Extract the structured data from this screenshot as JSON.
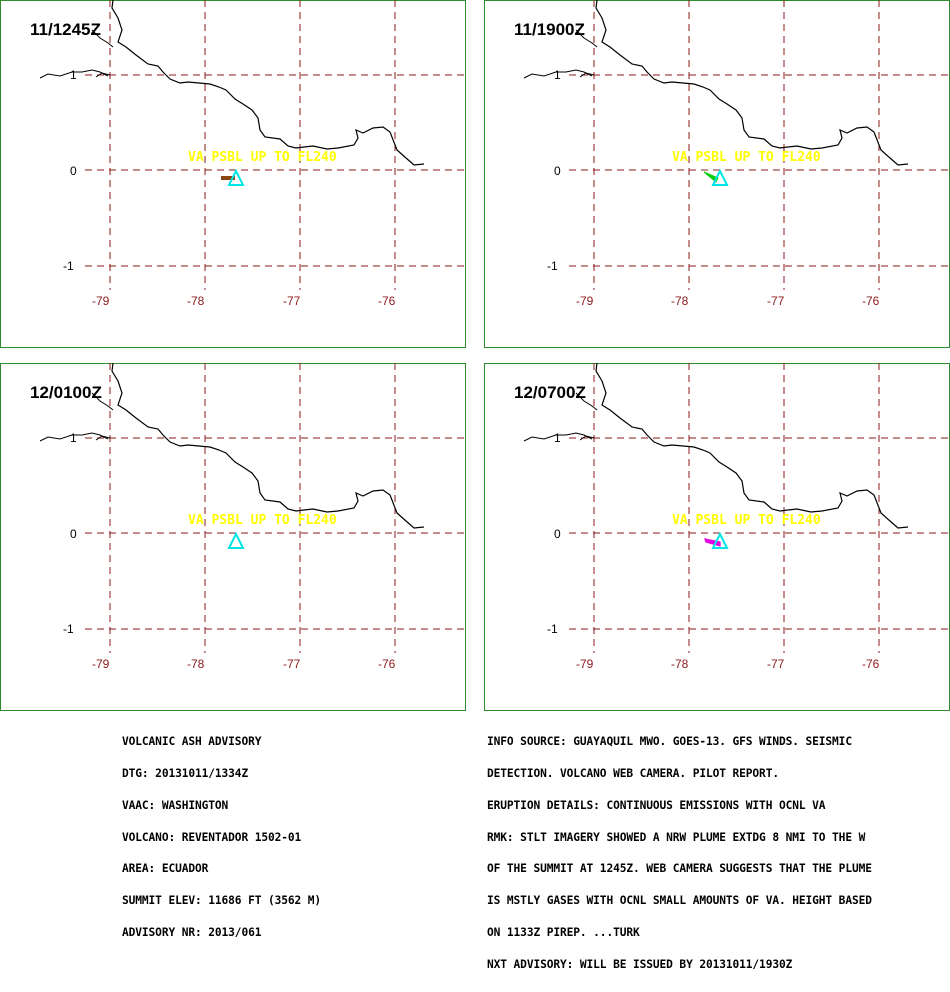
{
  "colors": {
    "frame": "#2e8b2e",
    "grid": "#8b1a1a",
    "coast": "#000000",
    "va_text": "#ffff00",
    "volcano": "#00e5e5"
  },
  "latitude_labels": [
    "1",
    "0",
    "-1"
  ],
  "longitude_labels": [
    "-79",
    "-78",
    "-77",
    "-76"
  ],
  "panels": [
    {
      "timestamp": "11/1245Z",
      "va_text": "VA PSBL UP TO FL240",
      "plume_color": "#8b4513",
      "plume_shape": "bar-west"
    },
    {
      "timestamp": "11/1900Z",
      "va_text": "VA PSBL UP TO FL240",
      "plume_color": "#00cc00",
      "plume_shape": "wedge-northwest"
    },
    {
      "timestamp": "12/0100Z",
      "va_text": "VA PSBL UP TO FL240",
      "plume_color": "#00e5e5",
      "plume_shape": "none"
    },
    {
      "timestamp": "12/0700Z",
      "va_text": "VA PSBL UP TO FL240",
      "plume_color": "#e000e0",
      "plume_shape": "wedge-southwest"
    }
  ],
  "advisory_left": [
    "VOLCANIC ASH ADVISORY",
    "DTG: 20131011/1334Z",
    "VAAC: WASHINGTON",
    "VOLCANO: REVENTADOR 1502-01",
    "AREA: ECUADOR",
    "SUMMIT ELEV: 11686 FT (3562 M)",
    "ADVISORY NR: 2013/061"
  ],
  "advisory_right": [
    "INFO SOURCE: GUAYAQUIL MWO. GOES-13. GFS WINDS. SEISMIC",
    "DETECTION. VOLCANO WEB CAMERA. PILOT REPORT.",
    "ERUPTION DETAILS: CONTINUOUS EMISSIONS WITH OCNL VA",
    "RMK: STLT IMAGERY SHOWED A NRW PLUME EXTDG 8 NMI TO THE W",
    "OF THE SUMMIT AT 1245Z. WEB CAMERA SUGGESTS THAT THE PLUME",
    "IS MSTLY GASES WITH OCNL SMALL AMOUNTS OF VA. HEIGHT BASED",
    "ON 1133Z PIREP. ...TURK",
    "NXT ADVISORY: WILL BE ISSUED BY 20131011/1930Z"
  ]
}
